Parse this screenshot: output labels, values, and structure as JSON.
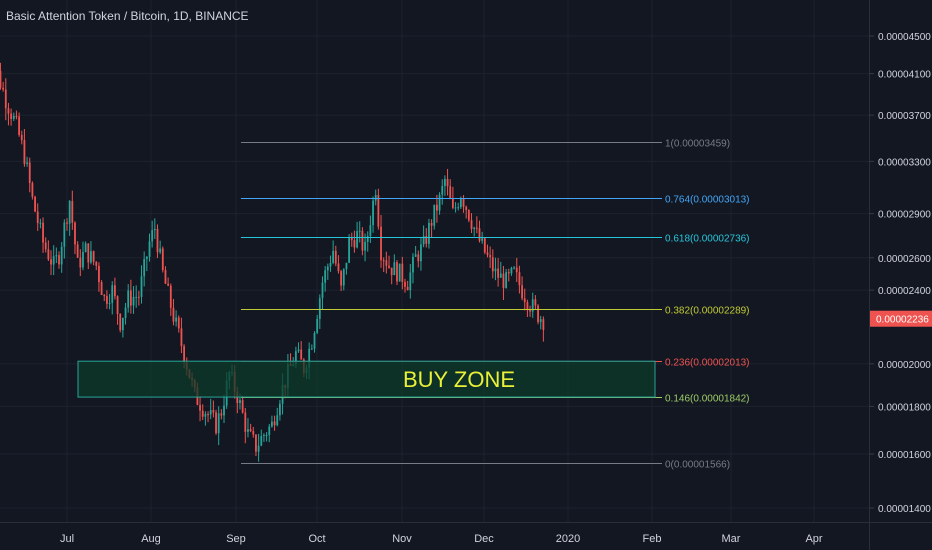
{
  "title": "Basic Attention Token / Bitcoin, 1D, BINANCE",
  "colors": {
    "background": "#131722",
    "grid": "#1e222d",
    "axis_text": "#d1d4dc",
    "up": "#26a69a",
    "down": "#ef5350",
    "price_tag": "#ef5350"
  },
  "chart_data": {
    "type": "candlestick",
    "x_axis": {
      "labels": [
        "Jul",
        "Aug",
        "Sep",
        "Oct",
        "Nov",
        "Dec",
        "2020",
        "Feb",
        "Mar",
        "Apr"
      ]
    },
    "y_axis": {
      "ticks": [
        "0.00004500",
        "0.00004100",
        "0.00003700",
        "0.00003300",
        "0.00002900",
        "0.00002600",
        "0.00002400",
        "0.00002000",
        "0.00001800",
        "0.00001600",
        "0.00001400"
      ],
      "scale": "log",
      "range": [
        1.36e-05,
        4.7e-05
      ]
    },
    "current_price": {
      "label": "0.00002236",
      "value": 2.236e-05
    },
    "close_path": [
      [
        "2019-06-01",
        4.28e-05
      ],
      [
        "2019-06-04",
        4.18e-05
      ],
      [
        "2019-06-08",
        3.85e-05
      ],
      [
        "2019-06-12",
        3.6e-05
      ],
      [
        "2019-06-15",
        3.35e-05
      ],
      [
        "2019-06-18",
        3e-05
      ],
      [
        "2019-06-22",
        2.7e-05
      ],
      [
        "2019-06-26",
        2.55e-05
      ],
      [
        "2019-06-28",
        2.62e-05
      ],
      [
        "2019-07-02",
        3e-05
      ],
      [
        "2019-07-05",
        2.55e-05
      ],
      [
        "2019-07-08",
        2.65e-05
      ],
      [
        "2019-07-12",
        2.55e-05
      ],
      [
        "2019-07-15",
        2.35e-05
      ],
      [
        "2019-07-18",
        2.4e-05
      ],
      [
        "2019-07-21",
        2.22e-05
      ],
      [
        "2019-07-24",
        2.35e-05
      ],
      [
        "2019-07-28",
        2.37e-05
      ],
      [
        "2019-08-01",
        2.7e-05
      ],
      [
        "2019-08-03",
        2.8e-05
      ],
      [
        "2019-08-06",
        2.5e-05
      ],
      [
        "2019-08-10",
        2.25e-05
      ],
      [
        "2019-08-14",
        2.05e-05
      ],
      [
        "2019-08-18",
        1.85e-05
      ],
      [
        "2019-08-22",
        1.78e-05
      ],
      [
        "2019-08-26",
        1.72e-05
      ],
      [
        "2019-08-28",
        1.78e-05
      ],
      [
        "2019-08-31",
        1.95e-05
      ],
      [
        "2019-09-03",
        1.85e-05
      ],
      [
        "2019-09-07",
        1.68e-05
      ],
      [
        "2019-09-10",
        1.63e-05
      ],
      [
        "2019-09-13",
        1.68e-05
      ],
      [
        "2019-09-16",
        1.72e-05
      ],
      [
        "2019-09-19",
        1.85e-05
      ],
      [
        "2019-09-22",
        1.95e-05
      ],
      [
        "2019-09-25",
        2.05e-05
      ],
      [
        "2019-09-28",
        1.98e-05
      ],
      [
        "2019-10-01",
        2.12e-05
      ],
      [
        "2019-10-05",
        2.45e-05
      ],
      [
        "2019-10-09",
        2.65e-05
      ],
      [
        "2019-10-12",
        2.4e-05
      ],
      [
        "2019-10-15",
        2.7e-05
      ],
      [
        "2019-10-18",
        2.75e-05
      ],
      [
        "2019-10-21",
        2.65e-05
      ],
      [
        "2019-10-25",
        3.1e-05
      ],
      [
        "2019-10-27",
        2.65e-05
      ],
      [
        "2019-10-30",
        2.55e-05
      ],
      [
        "2019-11-03",
        2.5e-05
      ],
      [
        "2019-11-06",
        2.45e-05
      ],
      [
        "2019-11-09",
        2.6e-05
      ],
      [
        "2019-11-12",
        2.68e-05
      ],
      [
        "2019-11-15",
        2.85e-05
      ],
      [
        "2019-11-18",
        3e-05
      ],
      [
        "2019-11-20",
        3.15e-05
      ],
      [
        "2019-11-23",
        2.9e-05
      ],
      [
        "2019-11-26",
        3.05e-05
      ],
      [
        "2019-11-29",
        2.9e-05
      ],
      [
        "2019-12-02",
        2.75e-05
      ],
      [
        "2019-12-06",
        2.6e-05
      ],
      [
        "2019-12-09",
        2.5e-05
      ],
      [
        "2019-12-13",
        2.45e-05
      ],
      [
        "2019-12-16",
        2.5e-05
      ],
      [
        "2019-12-19",
        2.4e-05
      ],
      [
        "2019-12-22",
        2.32e-05
      ],
      [
        "2019-12-25",
        2.26e-05
      ],
      [
        "2019-12-27",
        2.23e-05
      ]
    ],
    "fib_retracement": [
      {
        "label": "1(0.00003459)",
        "value": 3.459e-05,
        "color": "#787b86"
      },
      {
        "label": "0.764(0.00003013)",
        "value": 3.013e-05,
        "color": "#42a5f5"
      },
      {
        "label": "0.618(0.00002736)",
        "value": 2.736e-05,
        "color": "#26c6da"
      },
      {
        "label": "0.382(0.00002289)",
        "value": 2.289e-05,
        "color": "#c0ca33"
      },
      {
        "label": "0.236(0.00002013)",
        "value": 2.013e-05,
        "color": "#ef5350"
      },
      {
        "label": "0.146(0.00001842)",
        "value": 1.842e-05,
        "color": "#9ccc65"
      },
      {
        "label": "0(0.00001566)",
        "value": 1.566e-05,
        "color": "#787b86"
      }
    ],
    "zone": {
      "label": "BUY ZONE",
      "top": 2.013e-05,
      "bottom": 1.842e-05,
      "fill": "#0e3b2a",
      "border": "#26a69a",
      "text_color": "#e8f037"
    }
  }
}
